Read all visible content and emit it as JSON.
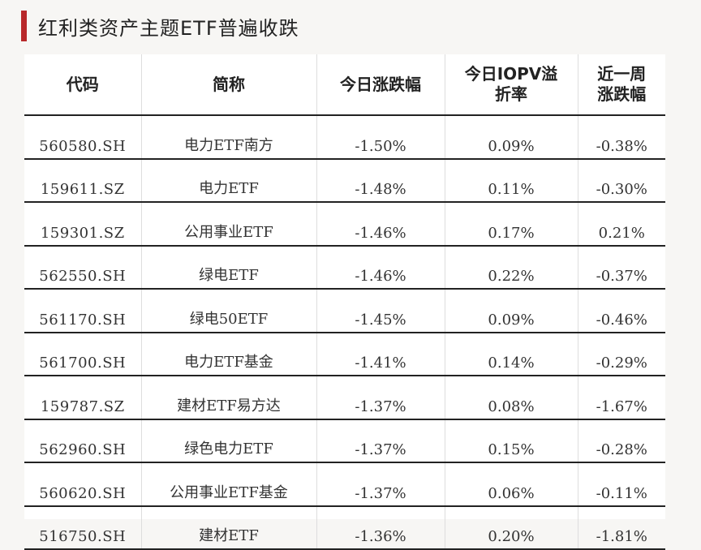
{
  "title": "红利类资产主题ETF普遍收跌",
  "columns": [
    "代码",
    "简称",
    "今日涨跌幅",
    "今日IOPV溢折率",
    "近一周涨跌幅"
  ],
  "rows": [
    {
      "code": "560580.SH",
      "name": "电力ETF南方",
      "change": "-1.50%",
      "iopv": "0.09%",
      "week": "-0.38%"
    },
    {
      "code": "159611.SZ",
      "name": "电力ETF",
      "change": "-1.48%",
      "iopv": "0.11%",
      "week": "-0.30%"
    },
    {
      "code": "159301.SZ",
      "name": "公用事业ETF",
      "change": "-1.46%",
      "iopv": "0.17%",
      "week": "0.21%"
    },
    {
      "code": "562550.SH",
      "name": "绿电ETF",
      "change": "-1.46%",
      "iopv": "0.22%",
      "week": "-0.37%"
    },
    {
      "code": "561170.SH",
      "name": "绿电50ETF",
      "change": "-1.45%",
      "iopv": "0.09%",
      "week": "-0.46%"
    },
    {
      "code": "561700.SH",
      "name": "电力ETF基金",
      "change": "-1.41%",
      "iopv": "0.14%",
      "week": "-0.29%"
    },
    {
      "code": "159787.SZ",
      "name": "建材ETF易方达",
      "change": "-1.37%",
      "iopv": "0.08%",
      "week": "-1.67%"
    },
    {
      "code": "562960.SH",
      "name": "绿色电力ETF",
      "change": "-1.37%",
      "iopv": "0.15%",
      "week": "-0.28%"
    },
    {
      "code": "560620.SH",
      "name": "公用事业ETF基金",
      "change": "-1.37%",
      "iopv": "0.06%",
      "week": "-0.11%"
    },
    {
      "code": "516750.SH",
      "name": "建材ETF",
      "change": "-1.36%",
      "iopv": "0.20%",
      "week": "-1.81%"
    }
  ],
  "colors": {
    "accent": "#b8282a",
    "rule": "#222222"
  }
}
